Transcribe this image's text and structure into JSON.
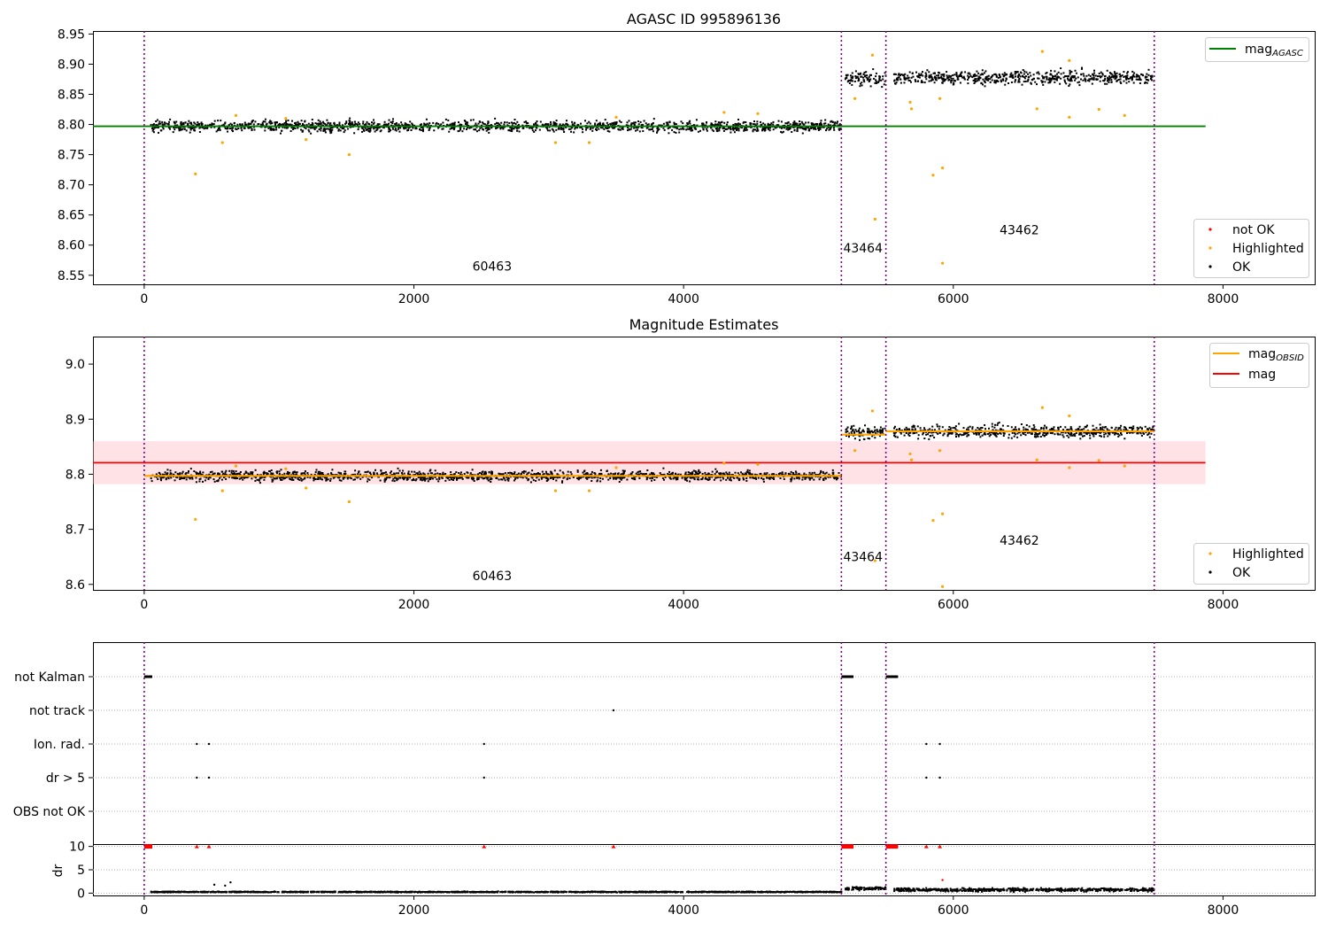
{
  "figure": {
    "xrange": [
      -380,
      8680
    ],
    "xticks": [
      0,
      2000,
      4000,
      6000,
      8000
    ],
    "obs_boundaries": [
      0,
      5170,
      5500,
      7490
    ]
  },
  "chart_data": [
    {
      "type": "scatter",
      "title": "AGASC ID 995896136",
      "xlabel": "",
      "ylabel": "",
      "ylim": [
        8.535,
        8.955
      ],
      "yticks": [
        8.55,
        8.6,
        8.65,
        8.7,
        8.75,
        8.8,
        8.85,
        8.9,
        8.95
      ],
      "grid": false,
      "legend_upper": {
        "placement": "upper-right",
        "entries": [
          {
            "label": "mag",
            "sub": "AGASC",
            "color": "#008000",
            "kind": "line"
          }
        ]
      },
      "legend_lower": {
        "placement": "lower-right",
        "entries": [
          {
            "label": "not OK",
            "color": "#ff0000",
            "kind": "dot"
          },
          {
            "label": "Highlighted",
            "color": "#ffa500",
            "kind": "dot"
          },
          {
            "label": "OK",
            "color": "#000000",
            "kind": "dot"
          }
        ]
      },
      "reference_lines": [
        {
          "name": "mag_AGASC",
          "y": 8.797,
          "x": [
            -380,
            7870
          ],
          "color": "#008000"
        }
      ],
      "ok_segments": [
        {
          "x": [
            50,
            5170
          ],
          "center": 8.797,
          "spread": 0.009
        },
        {
          "x": [
            5200,
            5500
          ],
          "center": 8.876,
          "spread": 0.011
        },
        {
          "x": [
            5560,
            7490
          ],
          "center": 8.878,
          "spread": 0.011
        }
      ],
      "highlighted_points": [
        [
          380,
          8.718
        ],
        [
          580,
          8.77
        ],
        [
          680,
          8.815
        ],
        [
          1050,
          8.81
        ],
        [
          1200,
          8.775
        ],
        [
          1520,
          8.75
        ],
        [
          3050,
          8.77
        ],
        [
          3300,
          8.77
        ],
        [
          3500,
          8.812
        ],
        [
          4300,
          8.82
        ],
        [
          4550,
          8.818
        ],
        [
          5270,
          8.843
        ],
        [
          5400,
          8.915
        ],
        [
          5420,
          8.643
        ],
        [
          5680,
          8.837
        ],
        [
          5690,
          8.826
        ],
        [
          5850,
          8.716
        ],
        [
          5900,
          8.843
        ],
        [
          5920,
          8.728
        ],
        [
          5920,
          8.57
        ],
        [
          6620,
          8.826
        ],
        [
          6660,
          8.921
        ],
        [
          6860,
          8.812
        ],
        [
          6860,
          8.906
        ],
        [
          7080,
          8.825
        ],
        [
          7270,
          8.815
        ]
      ],
      "annotations": [
        {
          "text": "60463",
          "x": 2580,
          "y": 8.558
        },
        {
          "text": "43464",
          "x": 5330,
          "y": 8.588
        },
        {
          "text": "43462",
          "x": 6490,
          "y": 8.618
        }
      ]
    },
    {
      "type": "scatter",
      "title": "Magnitude Estimates",
      "xlabel": "",
      "ylabel": "",
      "ylim": [
        8.59,
        9.05
      ],
      "yticks": [
        8.6,
        8.7,
        8.8,
        8.9,
        9.0
      ],
      "grid": false,
      "legend_upper": {
        "placement": "upper-right",
        "entries": [
          {
            "label": "mag",
            "sub": "OBSID",
            "color": "#ffa500",
            "kind": "line"
          },
          {
            "label": "mag",
            "sub": "",
            "color": "#ff0000",
            "kind": "line"
          }
        ]
      },
      "legend_lower": {
        "placement": "lower-right",
        "entries": [
          {
            "label": "Highlighted",
            "color": "#ffa500",
            "kind": "dot"
          },
          {
            "label": "OK",
            "color": "#000000",
            "kind": "dot"
          }
        ]
      },
      "band": {
        "y": [
          8.782,
          8.86
        ],
        "x": [
          -380,
          7870
        ],
        "color": "#ffb6c1"
      },
      "reference_lines": [
        {
          "name": "mag",
          "y": 8.821,
          "x": [
            -380,
            7870
          ],
          "color": "#ff0000"
        },
        {
          "name": "mag_OBSID 60463",
          "y": 8.797,
          "x": [
            0,
            5170
          ],
          "color": "#ffa500"
        },
        {
          "name": "mag_OBSID 43464",
          "y": 8.872,
          "x": [
            5170,
            5500
          ],
          "color": "#ffa500"
        },
        {
          "name": "mag_OBSID 43462",
          "y": 8.878,
          "x": [
            5500,
            7490
          ],
          "color": "#ffa500"
        }
      ],
      "ok_segments": [
        {
          "x": [
            50,
            5170
          ],
          "center": 8.797,
          "spread": 0.009
        },
        {
          "x": [
            5200,
            5500
          ],
          "center": 8.876,
          "spread": 0.011
        },
        {
          "x": [
            5560,
            7490
          ],
          "center": 8.878,
          "spread": 0.011
        }
      ],
      "highlighted_points": [
        [
          380,
          8.718
        ],
        [
          580,
          8.77
        ],
        [
          680,
          8.815
        ],
        [
          1050,
          8.81
        ],
        [
          1200,
          8.775
        ],
        [
          1520,
          8.75
        ],
        [
          3050,
          8.77
        ],
        [
          3300,
          8.77
        ],
        [
          3500,
          8.812
        ],
        [
          4300,
          8.82
        ],
        [
          4550,
          8.818
        ],
        [
          5270,
          8.843
        ],
        [
          5400,
          8.915
        ],
        [
          5420,
          8.643
        ],
        [
          5680,
          8.837
        ],
        [
          5690,
          8.826
        ],
        [
          5850,
          8.716
        ],
        [
          5900,
          8.843
        ],
        [
          5920,
          8.728
        ],
        [
          5920,
          8.596
        ],
        [
          6620,
          8.826
        ],
        [
          6660,
          8.921
        ],
        [
          6860,
          8.812
        ],
        [
          6860,
          8.906
        ],
        [
          7080,
          8.825
        ],
        [
          7270,
          8.815
        ]
      ],
      "annotations": [
        {
          "text": "60463",
          "x": 2580,
          "y": 8.608
        },
        {
          "text": "43464",
          "x": 5330,
          "y": 8.642
        },
        {
          "text": "43462",
          "x": 6490,
          "y": 8.672
        }
      ]
    },
    {
      "type": "scatter",
      "title": "",
      "xlabel": "",
      "ylabel": "",
      "categories": [
        "not Kalman",
        "not track",
        "Ion. rad.",
        "dr > 5",
        "OBS not OK"
      ],
      "grid": true,
      "flag_points": {
        "not Kalman": [
          [
            0,
            60
          ],
          [
            5170,
            5260
          ],
          [
            5500,
            5590
          ]
        ],
        "not track": [
          [
            3480,
            3480
          ]
        ],
        "Ion. rad.": [
          [
            390,
            390
          ],
          [
            480,
            480
          ],
          [
            2520,
            2520
          ],
          [
            5800,
            5800
          ],
          [
            5900,
            5900
          ]
        ],
        "dr > 5": [
          [
            390,
            390
          ],
          [
            480,
            480
          ],
          [
            2520,
            2520
          ],
          [
            5800,
            5800
          ],
          [
            5900,
            5900
          ]
        ],
        "OBS not OK": []
      }
    },
    {
      "type": "scatter",
      "title": "",
      "xlabel": "",
      "ylabel": "dr",
      "ylim": [
        -0.5,
        10.5
      ],
      "yticks": [
        0,
        5,
        10
      ],
      "grid": true,
      "ok_segments": [
        {
          "x": [
            50,
            5170
          ],
          "center": 0.25,
          "spread": 0.1
        },
        {
          "x": [
            5200,
            5500
          ],
          "center": 1.0,
          "spread": 0.35
        },
        {
          "x": [
            5560,
            7490
          ],
          "center": 0.7,
          "spread": 0.35
        }
      ],
      "extra_points": [
        [
          520,
          1.8
        ],
        [
          600,
          1.6
        ],
        [
          640,
          2.3
        ],
        [
          5920,
          2.8
        ]
      ],
      "capped_points": {
        "value": 10,
        "ranges": [
          [
            0,
            60
          ],
          [
            390,
            390
          ],
          [
            480,
            480
          ],
          [
            2520,
            2520
          ],
          [
            3480,
            3480
          ],
          [
            5170,
            5260
          ],
          [
            5500,
            5590
          ],
          [
            5800,
            5800
          ],
          [
            5900,
            5900
          ]
        ]
      }
    }
  ]
}
